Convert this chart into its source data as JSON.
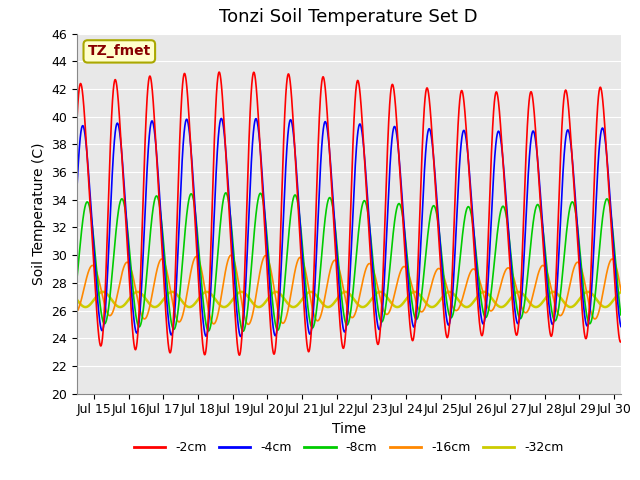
{
  "title": "Tonzi Soil Temperature Set D",
  "xlabel": "Time",
  "ylabel": "Soil Temperature (C)",
  "ylim": [
    20,
    46
  ],
  "xlim_days": [
    14.5,
    30.2
  ],
  "xtick_days": [
    15,
    16,
    17,
    18,
    19,
    20,
    21,
    22,
    23,
    24,
    25,
    26,
    27,
    28,
    29,
    30
  ],
  "xtick_labels": [
    "Jul 15",
    "Jul 16",
    "Jul 17",
    "Jul 18",
    "Jul 19",
    "Jul 20",
    "Jul 21",
    "Jul 22",
    "Jul 23",
    "Jul 24",
    "Jul 25",
    "Jul 26",
    "Jul 27",
    "Jul 28",
    "Jul 29",
    "Jul 30"
  ],
  "ytick_labels": [
    "20",
    "22",
    "24",
    "26",
    "28",
    "30",
    "32",
    "34",
    "36",
    "38",
    "40",
    "42",
    "44",
    "46"
  ],
  "yticks": [
    20,
    22,
    24,
    26,
    28,
    30,
    32,
    34,
    36,
    38,
    40,
    42,
    44,
    46
  ],
  "legend_label": "TZ_fmet",
  "legend_box_color": "#ffffcc",
  "legend_box_edge_color": "#aaa800",
  "legend_text_color": "#880000",
  "series_labels": [
    "-2cm",
    "-4cm",
    "-8cm",
    "-16cm",
    "-32cm"
  ],
  "series_colors": [
    "#ff0000",
    "#0000ff",
    "#00cc00",
    "#ff8800",
    "#cccc00"
  ],
  "series_linewidths": [
    1.2,
    1.2,
    1.2,
    1.2,
    1.8
  ],
  "background_color": "#e8e8e8",
  "plot_bg_color": "#e8e8e8",
  "fig_bg_color": "#ffffff",
  "grid_color": "#ffffff",
  "title_fontsize": 13,
  "axis_label_fontsize": 10,
  "tick_fontsize": 9
}
